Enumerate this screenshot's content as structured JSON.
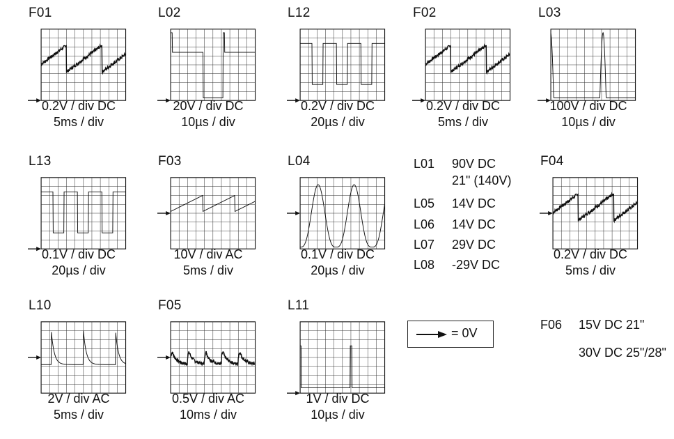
{
  "zero_marker_color": "#111111",
  "scopes": [
    {
      "id": "F01",
      "volts": "0.2V / div DC",
      "time": "5ms / div",
      "waveform": "ramp",
      "zero_level_div": 1,
      "trace": "noisy"
    },
    {
      "id": "L02",
      "volts": "20V / div DC",
      "time": "10µs / div",
      "waveform": "pulse-spike",
      "zero_level_div": 1
    },
    {
      "id": "L12",
      "volts": "0.2V / div DC",
      "time": "20µs / div",
      "waveform": "square",
      "zero_level_div": 1
    },
    {
      "id": "F02",
      "volts": "0.2V / div DC",
      "time": "5ms / div",
      "waveform": "ramp",
      "zero_level_div": 1,
      "trace": "noisy"
    },
    {
      "id": "L03",
      "volts": "100V / div DC",
      "time": "10µs / div",
      "waveform": "pulse",
      "zero_level_div": 1
    },
    {
      "id": "L13",
      "volts": "0.1V / div DC",
      "time": "20µs / div",
      "waveform": "square",
      "zero_level_div": 1
    },
    {
      "id": "F03",
      "volts": "10V / div AC",
      "time": "5ms / div",
      "waveform": "sawtooth",
      "zero_level_div": 5
    },
    {
      "id": "L04",
      "volts": "0.1V / div DC",
      "time": "20µs / div",
      "waveform": "cosine",
      "zero_level_div": 5
    },
    {
      "id": "F04",
      "volts": "0.2V / div DC",
      "time": "5ms / div",
      "waveform": "ramp",
      "zero_level_div": 5,
      "trace": "noisy"
    },
    {
      "id": "L10",
      "volts": "2V / div AC",
      "time": "5ms / div",
      "waveform": "spike-decay",
      "zero_level_div": 5
    },
    {
      "id": "F05",
      "volts": "0.5V / div AC",
      "time": "10ms / div",
      "waveform": "ripple",
      "zero_level_div": 5,
      "trace": "noisy"
    },
    {
      "id": "L11",
      "volts": "1V / div DC",
      "time": "10µs / div",
      "waveform": "narrow-pulse",
      "zero_level_div": 1
    }
  ],
  "dc_values": [
    {
      "id": "L01",
      "value": "90V DC"
    },
    {
      "id": "",
      "value": "21\" (140V)"
    },
    {
      "id": "L05",
      "value": "14V DC"
    },
    {
      "id": "L06",
      "value": "14V DC"
    },
    {
      "id": "L07",
      "value": "29V DC"
    },
    {
      "id": "L08",
      "value": "-29V DC"
    }
  ],
  "legend": {
    "text": "= 0V",
    "icon": "arrow-right-icon"
  },
  "f06": {
    "id": "F06",
    "value1": "15V DC 21\"",
    "value2": "30V DC 25\"/28\""
  }
}
